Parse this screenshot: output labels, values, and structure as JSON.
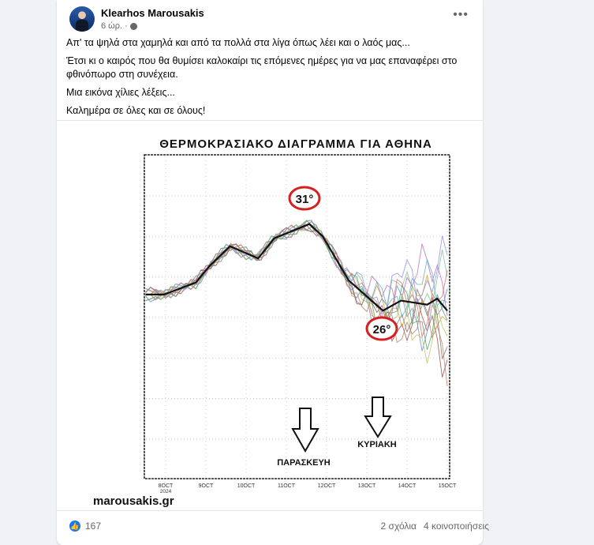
{
  "post": {
    "author": "Klearhos Marousakis",
    "time": "6 ώρ.",
    "separator": "·",
    "privacy_icon": "globe-icon",
    "more_icon": "more-options-icon",
    "more_label": "•••",
    "paragraphs": [
      "Απ' τα ψηλά στα χαμηλά και από τα πολλά στα λίγα όπως λέει και ο λαός μας...",
      "Έτσι κι ο καιρός που θα θυμίσει καλοκαίρι τις επόμενες ημέρες για να μας επαναφέρει στο φθινόπωρο στη συνέχεια.",
      "Μια εικόνα χίλιες λέξεις...",
      "Καλημέρα σε όλες και σε όλους!"
    ]
  },
  "image": {
    "watermark": "marousakis.gr",
    "arrow_labels": [
      "ΠΑΡΑΣΚΕΥΗ",
      "ΚΥΡΙΑΚΗ"
    ]
  },
  "chart_data": {
    "type": "line",
    "title": "ΘΕΡΜΟΚΡΑΣΙΑΚΟ ΔΙΑΓΡΑΜΜΑ ΓΙΑ ΑΘΗΝΑ",
    "x_ticks": [
      "8OCT",
      "9OCT",
      "10OCT",
      "11OCT",
      "12OCT",
      "13OCT",
      "14OCT",
      "15OCT"
    ],
    "x_tick_sub": "2024",
    "grid": true,
    "annotations": [
      {
        "text": "31°",
        "x": "11OCT 12:00",
        "y": 31,
        "color": "#d62020"
      },
      {
        "text": "26°",
        "x": "13OCT 12:00",
        "y": 26,
        "color": "#d62020"
      }
    ],
    "series": [
      {
        "style": "ensemble-mean",
        "color": "#111111",
        "x": [
          7.5,
          7.96,
          8.75,
          9.08,
          9.6,
          10.3,
          10.7,
          11.57,
          11.9,
          12.55,
          13.4,
          13.85,
          14.5,
          14.75,
          15.0
        ],
        "y": [
          27.1,
          27.1,
          27.7,
          28.5,
          29.5,
          28.9,
          29.9,
          30.6,
          30.0,
          27.8,
          26.3,
          26.8,
          26.6,
          26.9,
          26.3
        ]
      }
    ],
    "ensemble_colors": [
      "#a05050",
      "#6a8fd0",
      "#d0a040",
      "#80c090",
      "#b070c0",
      "#c0c060",
      "#7a7a7a",
      "#e07070",
      "#60b0c0",
      "#9090e0",
      "#c08060",
      "#50a070"
    ]
  },
  "footer": {
    "like_icon": "like-icon",
    "like_count": "167",
    "comments": "2 σχόλια",
    "shares": "4 κοινοποιήσεις"
  }
}
